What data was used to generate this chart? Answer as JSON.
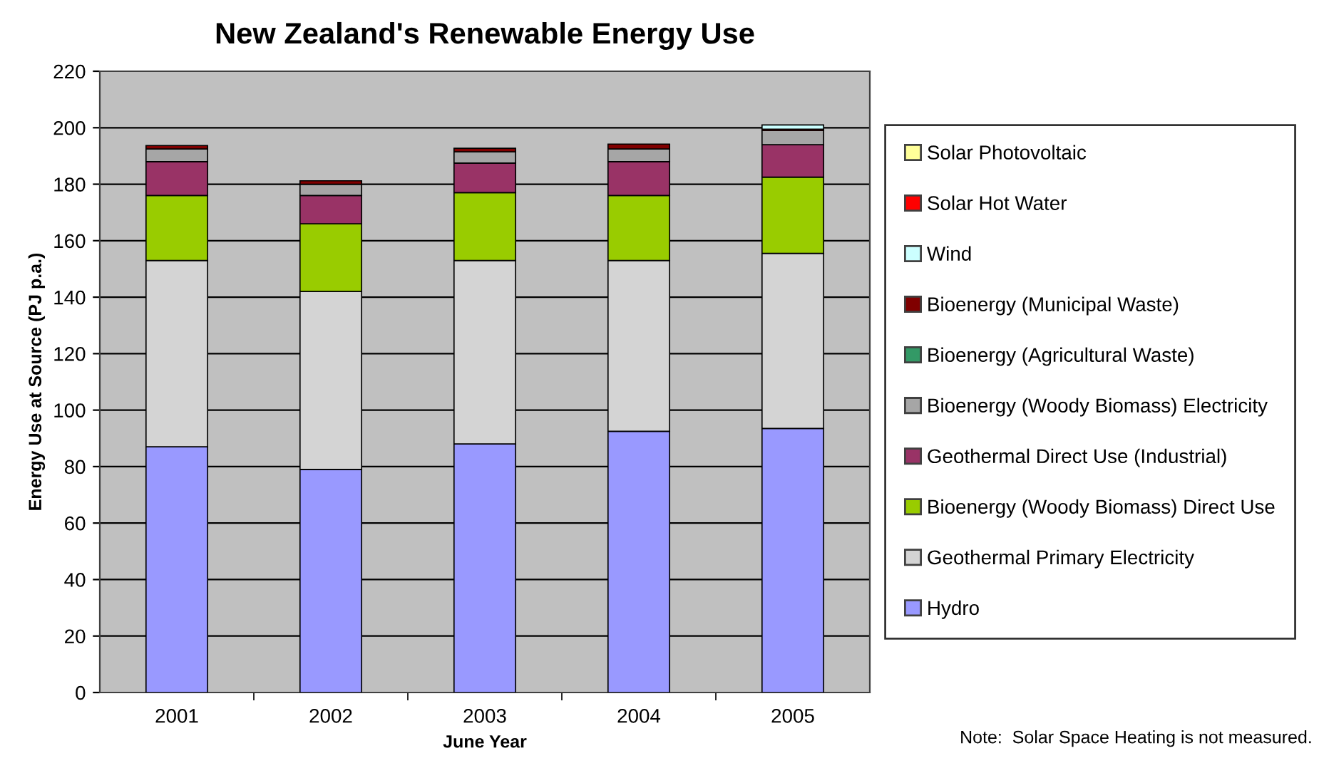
{
  "chart_data": {
    "type": "bar",
    "stacked": true,
    "title": "New Zealand's Renewable Energy Use",
    "xlabel": "June Year",
    "ylabel": "Energy Use at Source (PJ p.a.)",
    "categories": [
      "2001",
      "2002",
      "2003",
      "2004",
      "2005"
    ],
    "series": [
      {
        "name": "Hydro",
        "color": "#9999ff",
        "values": [
          87,
          79,
          88,
          92.5,
          93.5
        ]
      },
      {
        "name": "Geothermal Primary Electricity",
        "color": "#d4d4d4",
        "values": [
          66,
          63,
          65,
          60.5,
          62
        ]
      },
      {
        "name": "Bioenergy (Woody Biomass) Direct Use",
        "color": "#99cc00",
        "values": [
          23,
          24,
          24,
          23,
          27
        ]
      },
      {
        "name": "Geothermal Direct Use (Industrial)",
        "color": "#993366",
        "values": [
          12,
          10,
          10.5,
          12,
          11.5
        ]
      },
      {
        "name": "Bioenergy (Woody Biomass) Electricity",
        "color": "#a6a6a6",
        "values": [
          4.5,
          4,
          4,
          4.5,
          5
        ]
      },
      {
        "name": "Bioenergy (Agricultural Waste)",
        "color": "#339966",
        "values": [
          null,
          null,
          null,
          null,
          null
        ]
      },
      {
        "name": "Bioenergy (Municipal Waste)",
        "color": "#800000",
        "values": [
          1.2,
          1.2,
          1.2,
          1.7,
          0.5
        ]
      },
      {
        "name": "Wind",
        "color": "#ccffff",
        "values": [
          null,
          null,
          null,
          null,
          1.5
        ]
      },
      {
        "name": "Solar Hot Water",
        "color": "#ff0000",
        "values": [
          null,
          null,
          null,
          null,
          null
        ]
      },
      {
        "name": "Solar Photovoltaic",
        "color": "#ffff99",
        "values": [
          null,
          null,
          null,
          null,
          null
        ]
      }
    ],
    "ylim": [
      0,
      220
    ],
    "yticks": [
      0,
      20,
      40,
      60,
      80,
      100,
      120,
      140,
      160,
      180,
      200,
      220
    ],
    "grid": "y",
    "legend": "right",
    "annotations": [
      "Note:  Solar Space Heating is not measured."
    ]
  }
}
